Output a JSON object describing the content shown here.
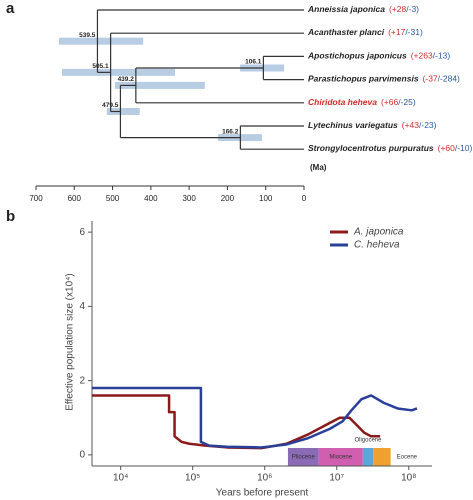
{
  "chart_data": [
    {
      "type": "tree",
      "panel": "a",
      "x_label": "(Ma)",
      "xlim": [
        700,
        0
      ],
      "xticks": [
        700,
        600,
        500,
        400,
        300,
        200,
        100,
        0
      ],
      "branch_color": "#333333",
      "ci_color": "#b8cce4",
      "tree": {
        "age": 539.5,
        "ci": [
          640,
          420
        ],
        "children": [
          {
            "name": "Anneissia japonica",
            "gain": "(+28",
            "loss": "/-3)",
            "color": "#222222"
          },
          {
            "age": 505.1,
            "ci": [
              632,
              337
            ],
            "children": [
              {
                "name": "Acanthaster planci",
                "gain": "(+17",
                "loss": "/-31)",
                "color": "#222222"
              },
              {
                "age": 479.5,
                "ci": [
                  515,
                  429
                ],
                "children": [
                  {
                    "age": 439.2,
                    "ci": [
                      494,
                      259
                    ],
                    "children": [
                      {
                        "age": 106.1,
                        "ci": [
                          167,
                          52
                        ],
                        "children": [
                          {
                            "name": "Apostichopus japonicus",
                            "gain": "(+263",
                            "loss": "/-13)",
                            "color": "#222222"
                          },
                          {
                            "name": "Parastichopus parvimensis",
                            "gain": "(-37",
                            "loss": "/-284)",
                            "color": "#222222"
                          }
                        ]
                      },
                      {
                        "name": "Chiridota heheva",
                        "gain": "(+66",
                        "loss": "/-25)",
                        "color": "#d42a2a"
                      }
                    ]
                  },
                  {
                    "age": 166.2,
                    "ci": [
                      225,
                      110
                    ],
                    "children": [
                      {
                        "name": "Lytechinus variegatus",
                        "gain": "(+43",
                        "loss": "/-23)",
                        "color": "#222222"
                      },
                      {
                        "name": "Strongylocentrotus purpuratus",
                        "gain": "(+60",
                        "loss": "/-10)",
                        "color": "#222222"
                      }
                    ]
                  }
                ]
              }
            ]
          }
        ]
      }
    },
    {
      "type": "line",
      "panel": "b",
      "x_label": "Years before present",
      "y_label": "Effective population size (x10⁴)",
      "x_scale": "log",
      "xlim": [
        4000,
        210000000
      ],
      "xticks": [
        {
          "value": 10000,
          "label": "10⁴"
        },
        {
          "value": 100000,
          "label": "10⁵"
        },
        {
          "value": 1000000,
          "label": "10⁶"
        },
        {
          "value": 10000000,
          "label": "10⁷"
        },
        {
          "value": 100000000,
          "label": "10⁸"
        }
      ],
      "ylim": [
        -0.3,
        6.3
      ],
      "yticks": [
        0,
        2,
        4,
        6
      ],
      "legend": "top-right",
      "series": [
        {
          "name": "A. japonica",
          "color": "#8b1a1a",
          "x": [
            4000,
            47000,
            47000,
            56000,
            56000,
            70000,
            90000,
            150000,
            300000,
            900000,
            2000000,
            4000000,
            7000000,
            11000000,
            15000000,
            19000000,
            24000000,
            30000000,
            40000000
          ],
          "values": [
            1.6,
            1.6,
            1.15,
            1.15,
            0.5,
            0.35,
            0.3,
            0.25,
            0.2,
            0.18,
            0.3,
            0.55,
            0.8,
            1.0,
            1.0,
            0.8,
            0.6,
            0.5,
            0.5
          ]
        },
        {
          "name": "C. heheva",
          "color": "#2a3f9a",
          "x": [
            4000,
            130000,
            130000,
            170000,
            300000,
            900000,
            2000000,
            4000000,
            8000000,
            12000000,
            16000000,
            22000000,
            30000000,
            45000000,
            70000000,
            110000000,
            130000000
          ],
          "values": [
            1.8,
            1.8,
            0.35,
            0.25,
            0.22,
            0.2,
            0.28,
            0.45,
            0.7,
            0.9,
            1.2,
            1.5,
            1.6,
            1.4,
            1.25,
            1.2,
            1.25
          ]
        }
      ],
      "epochs": [
        {
          "name": "Pliocene",
          "start": 2100000,
          "end": 5600000,
          "color": "#8b6bb5"
        },
        {
          "name": "Miocene",
          "start": 5600000,
          "end": 23000000,
          "color": "#d15fb0"
        },
        {
          "name": "Oligocene",
          "start": 23000000,
          "end": 32000000,
          "color": "#5aa7d8"
        },
        {
          "name": "Eocene",
          "start": 32000000,
          "end": 56000000,
          "color": "#f0a030"
        }
      ]
    }
  ]
}
